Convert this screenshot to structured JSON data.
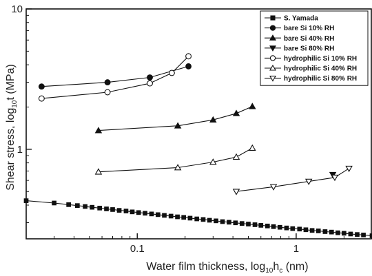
{
  "chart_data": {
    "type": "scatter",
    "xlabel_main": "Water film thickness, log",
    "xlabel_sub": "10",
    "xlabel_var": "h",
    "xlabel_var_sub": "c",
    "xlabel_unit": " (nm)",
    "ylabel_main": "Shear stress, log",
    "ylabel_sub": "10",
    "ylabel_var": "t",
    "ylabel_unit": " (MPa)",
    "x_scale": "log",
    "y_scale": "log",
    "xlim": [
      0.02,
      3.0
    ],
    "ylim": [
      0.23,
      10
    ],
    "x_ticks": [
      {
        "value": 0.1,
        "label": "0.1"
      },
      {
        "value": 1,
        "label": "1"
      }
    ],
    "y_ticks": [
      {
        "value": 1,
        "label": "1"
      },
      {
        "value": 10,
        "label": "10"
      }
    ],
    "grid": false,
    "legend_position": "top-right",
    "series": [
      {
        "name": "S. Yamada",
        "marker": "square-filled",
        "color": "#111111",
        "x": [
          0.02,
          0.03,
          0.037,
          0.042,
          0.047,
          0.052,
          0.058,
          0.064,
          0.07,
          0.077,
          0.085,
          0.093,
          0.102,
          0.112,
          0.123,
          0.135,
          0.148,
          0.163,
          0.179,
          0.196,
          0.215,
          0.237,
          0.26,
          0.285,
          0.313,
          0.344,
          0.378,
          0.415,
          0.456,
          0.5,
          0.55,
          0.6,
          0.66,
          0.72,
          0.79,
          0.87,
          0.95,
          1.05,
          1.15,
          1.26,
          1.38,
          1.52,
          1.67,
          1.83,
          2.0,
          2.2,
          2.42,
          2.65,
          3.0
        ],
        "y": [
          0.43,
          0.414,
          0.403,
          0.397,
          0.391,
          0.386,
          0.381,
          0.376,
          0.372,
          0.367,
          0.363,
          0.358,
          0.354,
          0.35,
          0.346,
          0.342,
          0.338,
          0.334,
          0.33,
          0.327,
          0.323,
          0.319,
          0.316,
          0.312,
          0.309,
          0.305,
          0.302,
          0.299,
          0.296,
          0.293,
          0.29,
          0.287,
          0.284,
          0.281,
          0.278,
          0.275,
          0.272,
          0.27,
          0.267,
          0.264,
          0.262,
          0.259,
          0.257,
          0.254,
          0.252,
          0.249,
          0.247,
          0.245,
          0.242
        ]
      },
      {
        "name": "bare Si 10% RH",
        "marker": "circle-filled",
        "color": "#111111",
        "x": [
          0.025,
          0.065,
          0.12,
          0.21
        ],
        "y": [
          2.8,
          3.0,
          3.25,
          3.9
        ]
      },
      {
        "name": "bare Si 40% RH",
        "marker": "triangle-up-filled",
        "color": "#111111",
        "x": [
          0.057,
          0.18,
          0.3,
          0.42,
          0.53
        ],
        "y": [
          1.36,
          1.47,
          1.62,
          1.8,
          2.02
        ]
      },
      {
        "name": "bare Si 80% RH",
        "marker": "triangle-down-filled",
        "color": "#111111",
        "x": [
          1.7
        ],
        "y": [
          0.66
        ]
      },
      {
        "name": "hydrophilic Si 10% RH",
        "marker": "circle-open",
        "color": "#111111",
        "x": [
          0.025,
          0.065,
          0.12,
          0.165,
          0.21
        ],
        "y": [
          2.3,
          2.55,
          2.95,
          3.5,
          4.6
        ]
      },
      {
        "name": "hydrophilic Si 40% RH",
        "marker": "triangle-up-open",
        "color": "#111111",
        "x": [
          0.057,
          0.18,
          0.3,
          0.42,
          0.53
        ],
        "y": [
          0.69,
          0.74,
          0.81,
          0.88,
          1.02
        ]
      },
      {
        "name": "hydrophilic Si 80% RH",
        "marker": "triangle-down-open",
        "color": "#111111",
        "x": [
          0.42,
          0.72,
          1.2,
          1.75,
          2.15
        ],
        "y": [
          0.5,
          0.54,
          0.59,
          0.63,
          0.73
        ]
      }
    ]
  }
}
